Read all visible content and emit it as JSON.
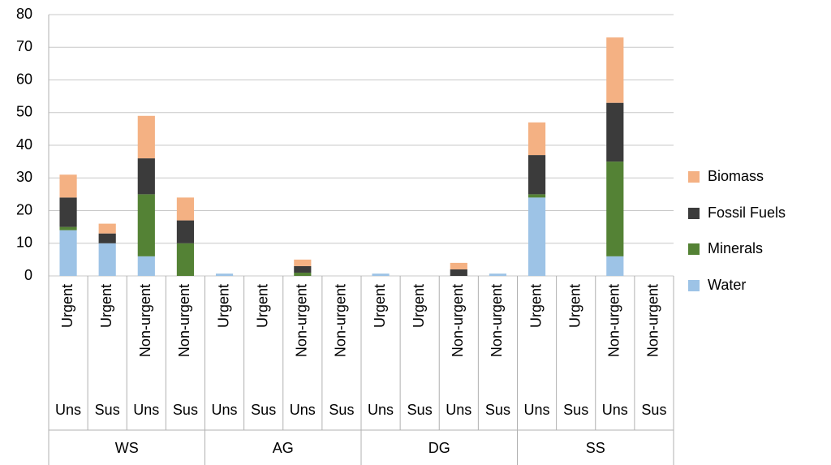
{
  "chart_data": {
    "type": "stacked_bar",
    "categories": [
      "Urgent",
      "Urgent",
      "Non-urgent",
      "Non-urgent",
      "Urgent",
      "Urgent",
      "Non-urgent",
      "Non-urgent",
      "Urgent",
      "Urgent",
      "Non-urgent",
      "Non-urgent",
      "Urgent",
      "Urgent",
      "Non-urgent",
      "Non-urgent"
    ],
    "sustainability": [
      "Uns",
      "Sus",
      "Uns",
      "Sus",
      "Uns",
      "Sus",
      "Uns",
      "Sus",
      "Uns",
      "Sus",
      "Uns",
      "Sus",
      "Uns",
      "Sus",
      "Uns",
      "Sus"
    ],
    "groups": [
      "WS",
      "AG",
      "DG",
      "SS"
    ],
    "series": [
      {
        "name": "Water",
        "color": "#9dc3e6",
        "values": [
          14,
          10,
          6,
          0,
          0.7,
          0,
          0,
          0,
          0.7,
          0,
          0,
          0.7,
          24,
          0,
          6,
          0
        ]
      },
      {
        "name": "Minerals",
        "color": "#548235",
        "values": [
          1,
          0,
          19,
          10,
          0,
          0,
          1,
          0,
          0,
          0,
          0,
          0,
          1,
          0,
          29,
          0
        ]
      },
      {
        "name": "Fossil Fuels",
        "color": "#3b3b3b",
        "values": [
          9,
          3,
          11,
          7,
          0,
          0,
          2,
          0,
          0,
          0,
          2,
          0,
          12,
          0,
          18,
          0
        ]
      },
      {
        "name": "Biomass",
        "color": "#f4b183",
        "values": [
          7,
          3,
          13,
          7,
          0,
          0,
          2,
          0,
          0,
          0,
          2,
          0,
          10,
          0,
          20,
          0
        ]
      }
    ],
    "ylim": [
      0,
      80
    ],
    "yticks": [
      0,
      10,
      20,
      30,
      40,
      50,
      60,
      70,
      80
    ],
    "grid": true,
    "legend": "right"
  }
}
